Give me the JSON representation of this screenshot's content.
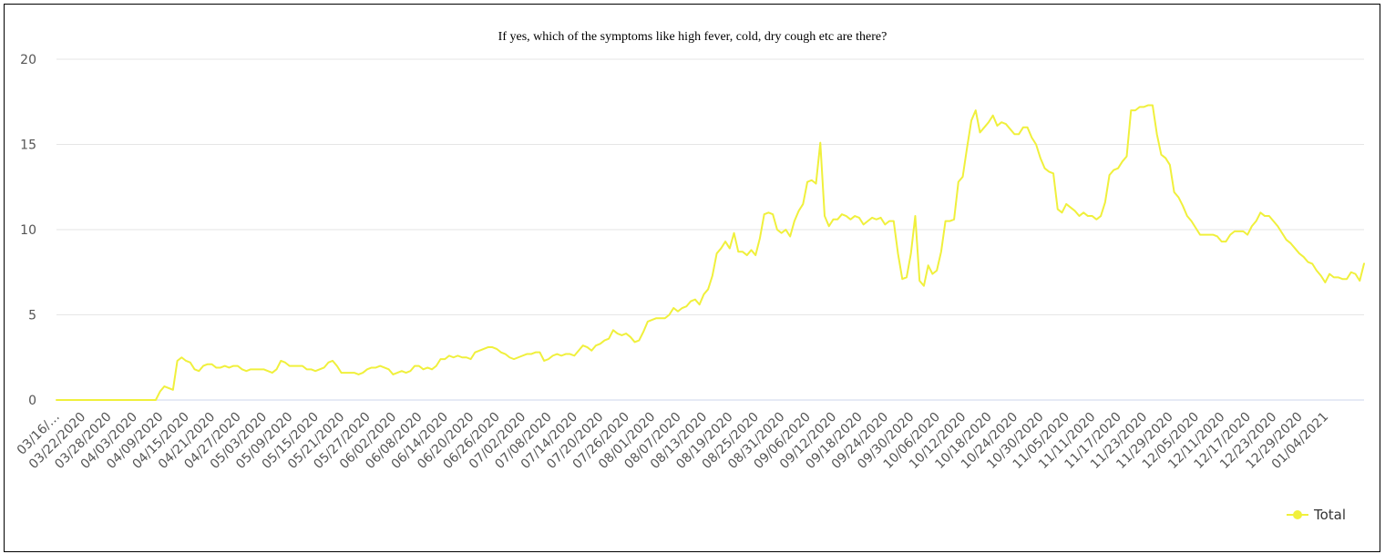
{
  "chart_data": {
    "type": "line",
    "title": "If yes, which of the symptoms like high fever, cold, dry cough etc are there?",
    "xlabel": "",
    "ylabel": "",
    "ylim": [
      0,
      20
    ],
    "yticks": [
      "0",
      "5",
      "10",
      "15",
      "20"
    ],
    "grid": true,
    "legend_position": "bottom-right",
    "x_tick_labels": [
      "03/16/…",
      "03/22/2020",
      "03/28/2020",
      "04/03/2020",
      "04/09/2020",
      "04/15/2020",
      "04/21/2020",
      "04/27/2020",
      "05/03/2020",
      "05/09/2020",
      "05/15/2020",
      "05/21/2020",
      "05/27/2020",
      "06/02/2020",
      "06/08/2020",
      "06/14/2020",
      "06/20/2020",
      "06/26/2020",
      "07/02/2020",
      "07/08/2020",
      "07/14/2020",
      "07/20/2020",
      "07/26/2020",
      "08/01/2020",
      "08/07/2020",
      "08/13/2020",
      "08/19/2020",
      "08/25/2020",
      "08/31/2020",
      "09/06/2020",
      "09/12/2020",
      "09/18/2020",
      "09/24/2020",
      "09/30/2020",
      "10/06/2020",
      "10/12/2020",
      "10/18/2020",
      "10/24/2020",
      "10/30/2020",
      "11/05/2020",
      "11/11/2020",
      "11/17/2020",
      "11/23/2020",
      "11/29/2020",
      "12/05/2020",
      "12/11/2020",
      "12/17/2020",
      "12/23/2020",
      "12/29/2020",
      "01/04/2021"
    ],
    "series": [
      {
        "name": "Total",
        "color": "#f0f03c",
        "values": [
          0,
          0,
          0,
          0,
          0,
          0,
          0,
          0,
          0,
          0,
          0,
          0,
          0,
          0,
          0,
          0,
          0,
          0,
          0,
          0,
          0,
          0,
          0,
          0,
          0.5,
          0.8,
          0.7,
          0.6,
          2.3,
          2.5,
          2.3,
          2.2,
          1.8,
          1.7,
          2.0,
          2.1,
          2.1,
          1.9,
          1.9,
          2.0,
          1.9,
          2.0,
          2.0,
          1.8,
          1.7,
          1.8,
          1.8,
          1.8,
          1.8,
          1.7,
          1.6,
          1.8,
          2.3,
          2.2,
          2.0,
          2.0,
          2.0,
          2.0,
          1.8,
          1.8,
          1.7,
          1.8,
          1.9,
          2.2,
          2.3,
          2.0,
          1.6,
          1.6,
          1.6,
          1.6,
          1.5,
          1.6,
          1.8,
          1.9,
          1.9,
          2.0,
          1.9,
          1.8,
          1.5,
          1.6,
          1.7,
          1.6,
          1.7,
          2.0,
          2.0,
          1.8,
          1.9,
          1.8,
          2.0,
          2.4,
          2.4,
          2.6,
          2.5,
          2.6,
          2.5,
          2.5,
          2.4,
          2.8,
          2.9,
          3.0,
          3.1,
          3.1,
          3.0,
          2.8,
          2.7,
          2.5,
          2.4,
          2.5,
          2.6,
          2.7,
          2.7,
          2.8,
          2.8,
          2.3,
          2.4,
          2.6,
          2.7,
          2.6,
          2.7,
          2.7,
          2.6,
          2.9,
          3.2,
          3.1,
          2.9,
          3.2,
          3.3,
          3.5,
          3.6,
          4.1,
          3.9,
          3.8,
          3.9,
          3.7,
          3.4,
          3.5,
          4.0,
          4.6,
          4.7,
          4.8,
          4.8,
          4.8,
          5.0,
          5.4,
          5.2,
          5.4,
          5.5,
          5.8,
          5.9,
          5.6,
          6.2,
          6.5,
          7.3,
          8.6,
          8.9,
          9.3,
          8.9,
          9.8,
          8.7,
          8.7,
          8.5,
          8.8,
          8.5,
          9.5,
          10.9,
          11.0,
          10.9,
          10.0,
          9.8,
          10.0,
          9.6,
          10.5,
          11.1,
          11.5,
          12.8,
          12.9,
          12.7,
          15.1,
          10.8,
          10.2,
          10.6,
          10.6,
          10.9,
          10.8,
          10.6,
          10.8,
          10.7,
          10.3,
          10.5,
          10.7,
          10.6,
          10.7,
          10.3,
          10.5,
          10.5,
          8.6,
          7.1,
          7.2,
          8.6,
          10.8,
          7.0,
          6.7,
          7.9,
          7.4,
          7.6,
          8.7,
          10.5,
          10.5,
          10.6,
          12.8,
          13.1,
          14.8,
          16.4,
          17.0,
          15.7,
          16.0,
          16.3,
          16.7,
          16.1,
          16.3,
          16.2,
          15.9,
          15.6,
          15.6,
          16.0,
          16.0,
          15.4,
          15.0,
          14.2,
          13.6,
          13.4,
          13.3,
          11.2,
          11.0,
          11.5,
          11.3,
          11.1,
          10.8,
          11.0,
          10.8,
          10.8,
          10.6,
          10.8,
          11.6,
          13.2,
          13.5,
          13.6,
          14.0,
          14.3,
          17.0,
          17.0,
          17.2,
          17.2,
          17.3,
          17.3,
          15.6,
          14.4,
          14.2,
          13.8,
          12.2,
          11.9,
          11.4,
          10.8,
          10.5,
          10.1,
          9.7,
          9.7,
          9.7,
          9.7,
          9.6,
          9.3,
          9.3,
          9.7,
          9.9,
          9.9,
          9.9,
          9.7,
          10.2,
          10.5,
          11.0,
          10.8,
          10.8,
          10.5,
          10.2,
          9.8,
          9.4,
          9.2,
          8.9,
          8.6,
          8.4,
          8.1,
          8.0,
          7.6,
          7.3,
          6.9,
          7.4,
          7.2,
          7.2,
          7.1,
          7.1,
          7.5,
          7.4,
          7.0,
          8.0
        ]
      }
    ]
  }
}
